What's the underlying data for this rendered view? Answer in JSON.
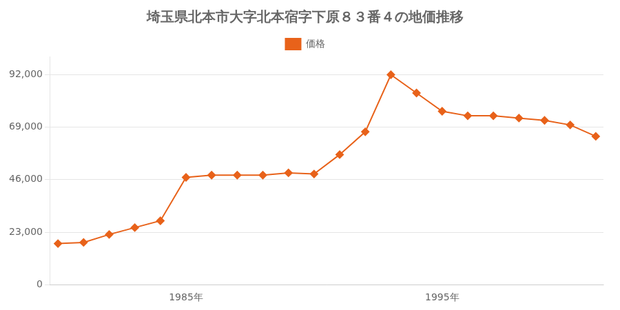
{
  "chart_data": {
    "type": "line",
    "title": "埼玉県北本市大字北本宿字下原８３番４の地価推移",
    "x": [
      1980,
      1981,
      1982,
      1983,
      1984,
      1985,
      1986,
      1987,
      1988,
      1989,
      1990,
      1991,
      1992,
      1993,
      1994,
      1995,
      1996,
      1997,
      1998,
      1999,
      2000,
      2001
    ],
    "series": [
      {
        "name": "価格",
        "color": "#e8621a",
        "marker": "diamond",
        "values": [
          18000,
          18500,
          22000,
          25000,
          28000,
          47000,
          48000,
          48000,
          48000,
          49000,
          48500,
          57000,
          67000,
          92000,
          84000,
          76000,
          74000,
          74000,
          73000,
          72000,
          70000,
          65000
        ]
      }
    ],
    "xlim": [
      1979.7,
      2001.3
    ],
    "xticks": [
      {
        "value": 1985,
        "label": "1985年"
      },
      {
        "value": 1995,
        "label": "1995年"
      }
    ],
    "ylim": [
      0,
      100000
    ],
    "yticks": [
      0,
      {
        "value": 23000,
        "label": "23,000"
      },
      {
        "value": 46000,
        "label": "46,000"
      },
      {
        "value": 69000,
        "label": "69,000"
      },
      {
        "value": 92000,
        "label": "92,000"
      }
    ],
    "grid": "y",
    "legend": "top"
  }
}
